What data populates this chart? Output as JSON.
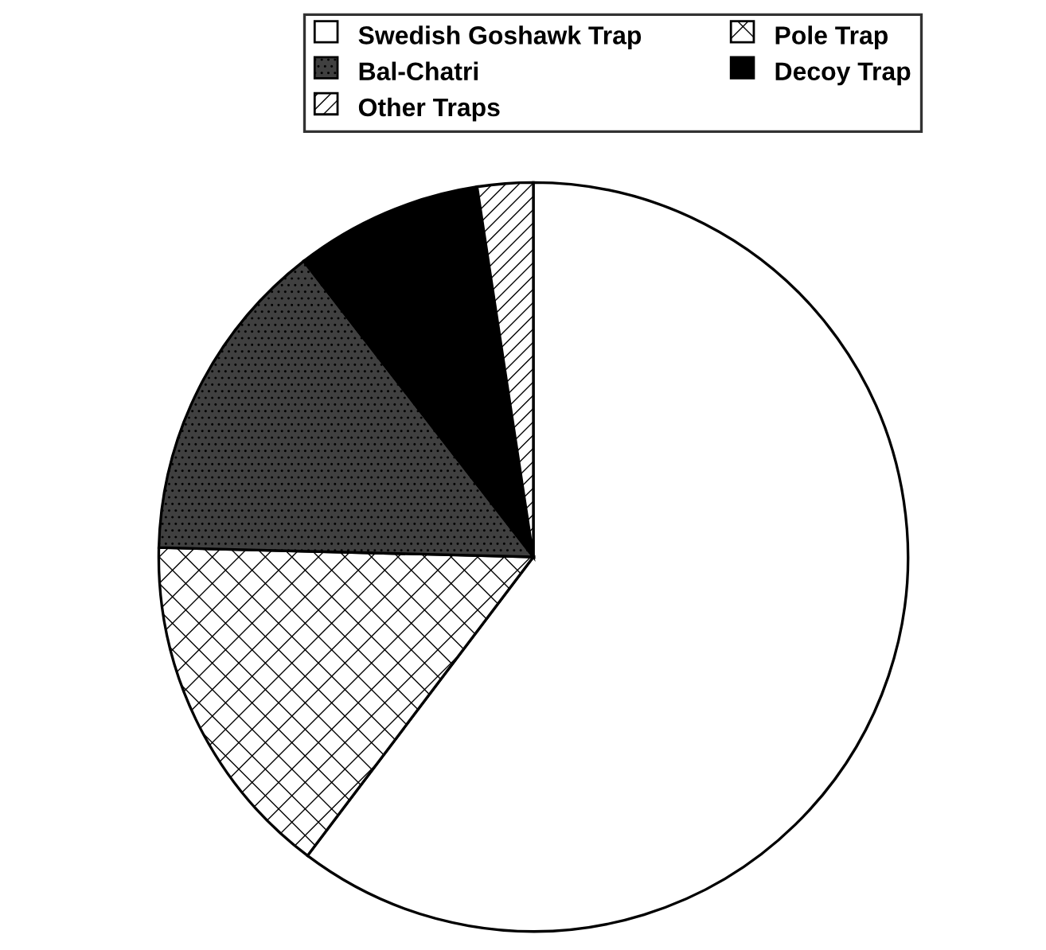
{
  "chart_data": {
    "type": "pie",
    "categories": [
      "Swedish Goshawk Trap",
      "Pole Trap",
      "Bal-Chatri",
      "Decoy Trap",
      "Other Traps"
    ],
    "values": [
      60.3,
      15.1,
      14.1,
      8.1,
      2.4
    ],
    "colors": [
      "#ffffff",
      "#ffffff",
      "#404040",
      "#000000",
      "#ffffff"
    ],
    "legend": "top"
  }
}
